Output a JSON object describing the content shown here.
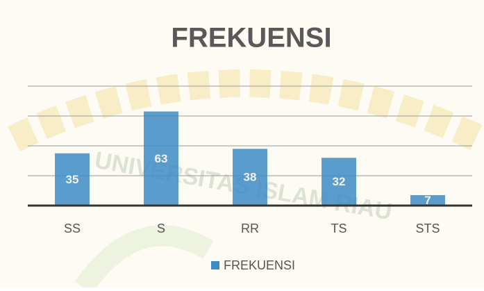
{
  "chart_data": {
    "type": "bar",
    "title": "FREKUENSI",
    "watermark": "UNIVERSITAS ISLAM RIAU",
    "categories": [
      "SS",
      "S",
      "RR",
      "TS",
      "STS"
    ],
    "series": [
      {
        "name": "FREKUENSI",
        "color": "#3d8cc6",
        "values": [
          35,
          63,
          38,
          32,
          7
        ]
      }
    ],
    "ylim": [
      0,
      80
    ],
    "yticks": [
      0,
      20,
      40,
      60,
      80
    ],
    "grid": true,
    "legend": "bottom"
  }
}
